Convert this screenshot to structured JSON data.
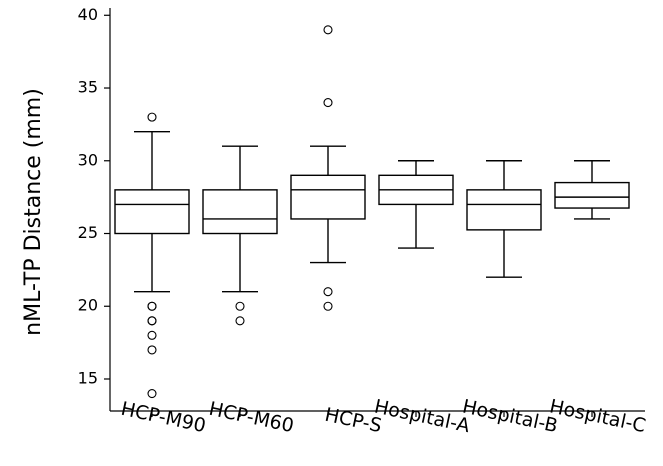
{
  "chart_data": {
    "type": "box",
    "ylabel": "nML-TP Distance (mm)",
    "ylim": [
      12.8,
      40.5
    ],
    "yticks": [
      15,
      20,
      25,
      30,
      35,
      40
    ],
    "categories": [
      "HCP-M90",
      "HCP-M60",
      "HCP-S",
      "Hospital-A",
      "Hospital-B",
      "Hospital-C"
    ],
    "boxes": [
      {
        "name": "HCP-M90",
        "whisker_low": 21,
        "q1": 25,
        "median": 27,
        "q3": 28,
        "whisker_high": 32,
        "outliers": [
          33,
          20,
          20,
          19,
          19,
          18,
          17,
          14
        ]
      },
      {
        "name": "HCP-M60",
        "whisker_low": 21,
        "q1": 25,
        "median": 26,
        "q3": 28,
        "whisker_high": 31,
        "outliers": [
          20,
          19
        ]
      },
      {
        "name": "HCP-S",
        "whisker_low": 23,
        "q1": 26,
        "median": 28,
        "q3": 29,
        "whisker_high": 31,
        "outliers": [
          39,
          34,
          21,
          20
        ]
      },
      {
        "name": "Hospital-A",
        "whisker_low": 24,
        "q1": 27,
        "median": 28,
        "q3": 29,
        "whisker_high": 30,
        "outliers": []
      },
      {
        "name": "Hospital-B",
        "whisker_low": 22,
        "q1": 25.25,
        "median": 27,
        "q3": 28,
        "whisker_high": 30,
        "outliers": []
      },
      {
        "name": "Hospital-C",
        "whisker_low": 26,
        "q1": 26.75,
        "median": 27.5,
        "q3": 28.5,
        "whisker_high": 30,
        "outliers": []
      }
    ],
    "grid": false,
    "legend": "none",
    "stroke_color": "#000000",
    "fill_color": "#ffffff"
  }
}
